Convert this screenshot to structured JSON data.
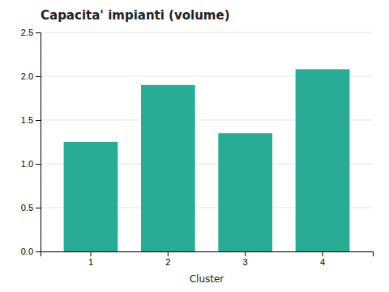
{
  "chart_data": {
    "type": "bar",
    "title": "Capacita' impianti (volume)",
    "categories": [
      "1",
      "2",
      "3",
      "4"
    ],
    "values": [
      1.25,
      1.9,
      1.35,
      2.08
    ],
    "color": "#2aab96",
    "xlabel": "Cluster",
    "ylim": [
      0.0,
      2.5
    ],
    "yticks": [
      {
        "value": 0.0,
        "label": "0.0"
      },
      0.5,
      {
        "value": 1.0,
        "label": "1.0"
      },
      1.5,
      {
        "value": 2.0,
        "label": "2.0"
      },
      2.5
    ],
    "grid": true
  }
}
